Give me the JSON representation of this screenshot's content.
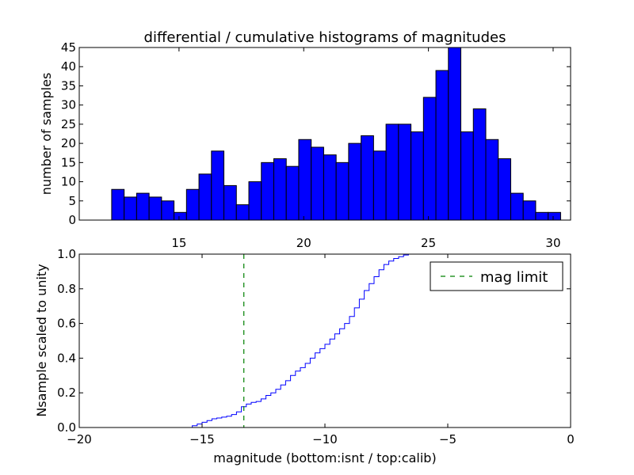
{
  "chart_data": [
    {
      "type": "bar",
      "title": "differential / cumulative histograms of magnitudes",
      "xlabel": "",
      "ylabel": "number of samples",
      "xlim": [
        11.0,
        30.7
      ],
      "ylim": [
        0,
        45
      ],
      "xticks": [
        15,
        20,
        25,
        30
      ],
      "yticks": [
        0,
        5,
        10,
        15,
        20,
        25,
        30,
        35,
        40,
        45
      ],
      "bar_color": "#0000ff",
      "edge_color": "#000000",
      "bin_start": 12.3,
      "bin_width": 0.5,
      "values": [
        8,
        6,
        7,
        6,
        5,
        2,
        8,
        12,
        18,
        9,
        4,
        10,
        15,
        16,
        14,
        21,
        19,
        17,
        15,
        20,
        22,
        18,
        25,
        25,
        23,
        32,
        39,
        45,
        23,
        29,
        21,
        16,
        7,
        5,
        2,
        2
      ],
      "grid": false
    },
    {
      "type": "line",
      "title": "",
      "xlabel": "magnitude (bottom:isnt / top:calib)",
      "ylabel": "Nsample scaled to unity",
      "xlim": [
        -20,
        0
      ],
      "ylim": [
        0.0,
        1.0
      ],
      "xticks": [
        -20,
        -15,
        -10,
        -5,
        0
      ],
      "xtick_labels": [
        "−20",
        "−15",
        "−10",
        "−5",
        "0"
      ],
      "yticks": [
        0.0,
        0.2,
        0.4,
        0.6,
        0.8,
        1.0
      ],
      "ytick_labels": [
        "0.0",
        "0.2",
        "0.4",
        "0.6",
        "0.8",
        "1.0"
      ],
      "grid": false,
      "legend": {
        "placement": "top-right",
        "entries": [
          "mag limit"
        ]
      },
      "series": [
        {
          "style": "step",
          "color": "#0000ff",
          "x": [
            -20.0,
            -15.4,
            -15.4,
            -15.2,
            -15.2,
            -15.0,
            -15.0,
            -14.8,
            -14.8,
            -14.6,
            -14.6,
            -14.4,
            -14.4,
            -14.2,
            -14.2,
            -14.0,
            -14.0,
            -13.8,
            -13.8,
            -13.6,
            -13.6,
            -13.4,
            -13.4,
            -13.2,
            -13.2,
            -13.0,
            -13.0,
            -12.8,
            -12.8,
            -12.6,
            -12.6,
            -12.4,
            -12.4,
            -12.2,
            -12.2,
            -12.0,
            -12.0,
            -11.8,
            -11.8,
            -11.6,
            -11.6,
            -11.4,
            -11.4,
            -11.2,
            -11.2,
            -11.0,
            -11.0,
            -10.8,
            -10.8,
            -10.6,
            -10.6,
            -10.4,
            -10.4,
            -10.2,
            -10.2,
            -10.0,
            -10.0,
            -9.8,
            -9.8,
            -9.6,
            -9.6,
            -9.4,
            -9.4,
            -9.2,
            -9.2,
            -9.0,
            -9.0,
            -8.8,
            -8.8,
            -8.6,
            -8.6,
            -8.4,
            -8.4,
            -8.2,
            -8.2,
            -8.0,
            -8.0,
            -7.8,
            -7.8,
            -7.6,
            -7.6,
            -7.4,
            -7.4,
            -7.2,
            -7.2,
            -7.0,
            -7.0,
            -6.8,
            -6.8,
            -6.6,
            -6.6,
            0.0
          ],
          "y": [
            0.0,
            0.0,
            0.01,
            0.01,
            0.02,
            0.02,
            0.03,
            0.03,
            0.04,
            0.04,
            0.05,
            0.05,
            0.055,
            0.055,
            0.06,
            0.06,
            0.065,
            0.065,
            0.075,
            0.075,
            0.09,
            0.09,
            0.12,
            0.12,
            0.135,
            0.135,
            0.145,
            0.145,
            0.15,
            0.15,
            0.165,
            0.165,
            0.185,
            0.185,
            0.2,
            0.2,
            0.22,
            0.22,
            0.245,
            0.245,
            0.27,
            0.27,
            0.3,
            0.3,
            0.325,
            0.325,
            0.345,
            0.345,
            0.37,
            0.37,
            0.4,
            0.4,
            0.43,
            0.43,
            0.455,
            0.455,
            0.48,
            0.48,
            0.51,
            0.51,
            0.54,
            0.54,
            0.57,
            0.57,
            0.6,
            0.6,
            0.64,
            0.64,
            0.69,
            0.69,
            0.74,
            0.74,
            0.79,
            0.79,
            0.83,
            0.83,
            0.87,
            0.87,
            0.91,
            0.91,
            0.94,
            0.94,
            0.96,
            0.96,
            0.975,
            0.975,
            0.985,
            0.985,
            0.995,
            0.995,
            1.0,
            1.0
          ]
        },
        {
          "name": "mag limit",
          "style": "dashed-vertical",
          "color": "#008000",
          "x": -13.3
        }
      ]
    }
  ]
}
